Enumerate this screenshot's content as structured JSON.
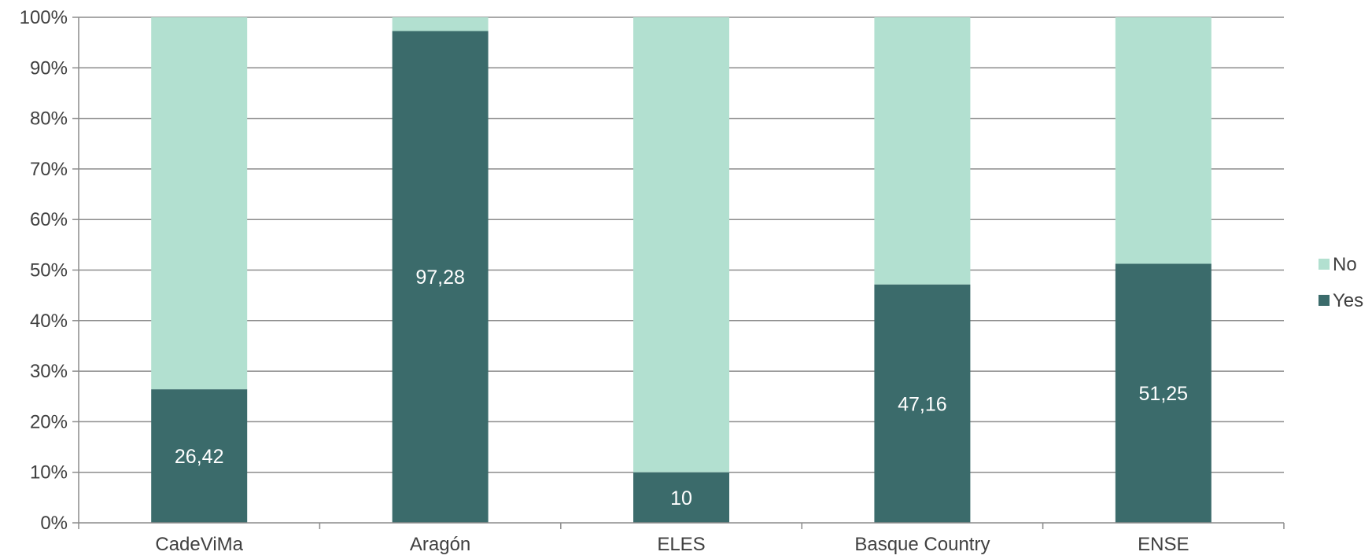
{
  "chart_data": {
    "type": "bar",
    "stacked": true,
    "percent_stacked": true,
    "categories": [
      "CadeViMa",
      "Aragón",
      "ELES",
      "Basque Country",
      "ENSE"
    ],
    "series": [
      {
        "name": "Yes",
        "values": [
          26.42,
          97.28,
          10,
          47.16,
          51.25
        ],
        "color": "#3b6b6b",
        "labels": [
          "26,42",
          "97,28",
          "10",
          "47,16",
          "51,25"
        ]
      },
      {
        "name": "No",
        "values": [
          73.58,
          2.72,
          90,
          52.84,
          48.75
        ],
        "color": "#b2e0d0"
      }
    ],
    "y_ticks": [
      "0%",
      "10%",
      "20%",
      "30%",
      "40%",
      "50%",
      "60%",
      "70%",
      "80%",
      "90%",
      "100%"
    ],
    "ylim": [
      0,
      100
    ],
    "grid": true,
    "legend_position": "right",
    "legend_order": [
      "No",
      "Yes"
    ],
    "title": "",
    "xlabel": "",
    "ylabel": ""
  }
}
